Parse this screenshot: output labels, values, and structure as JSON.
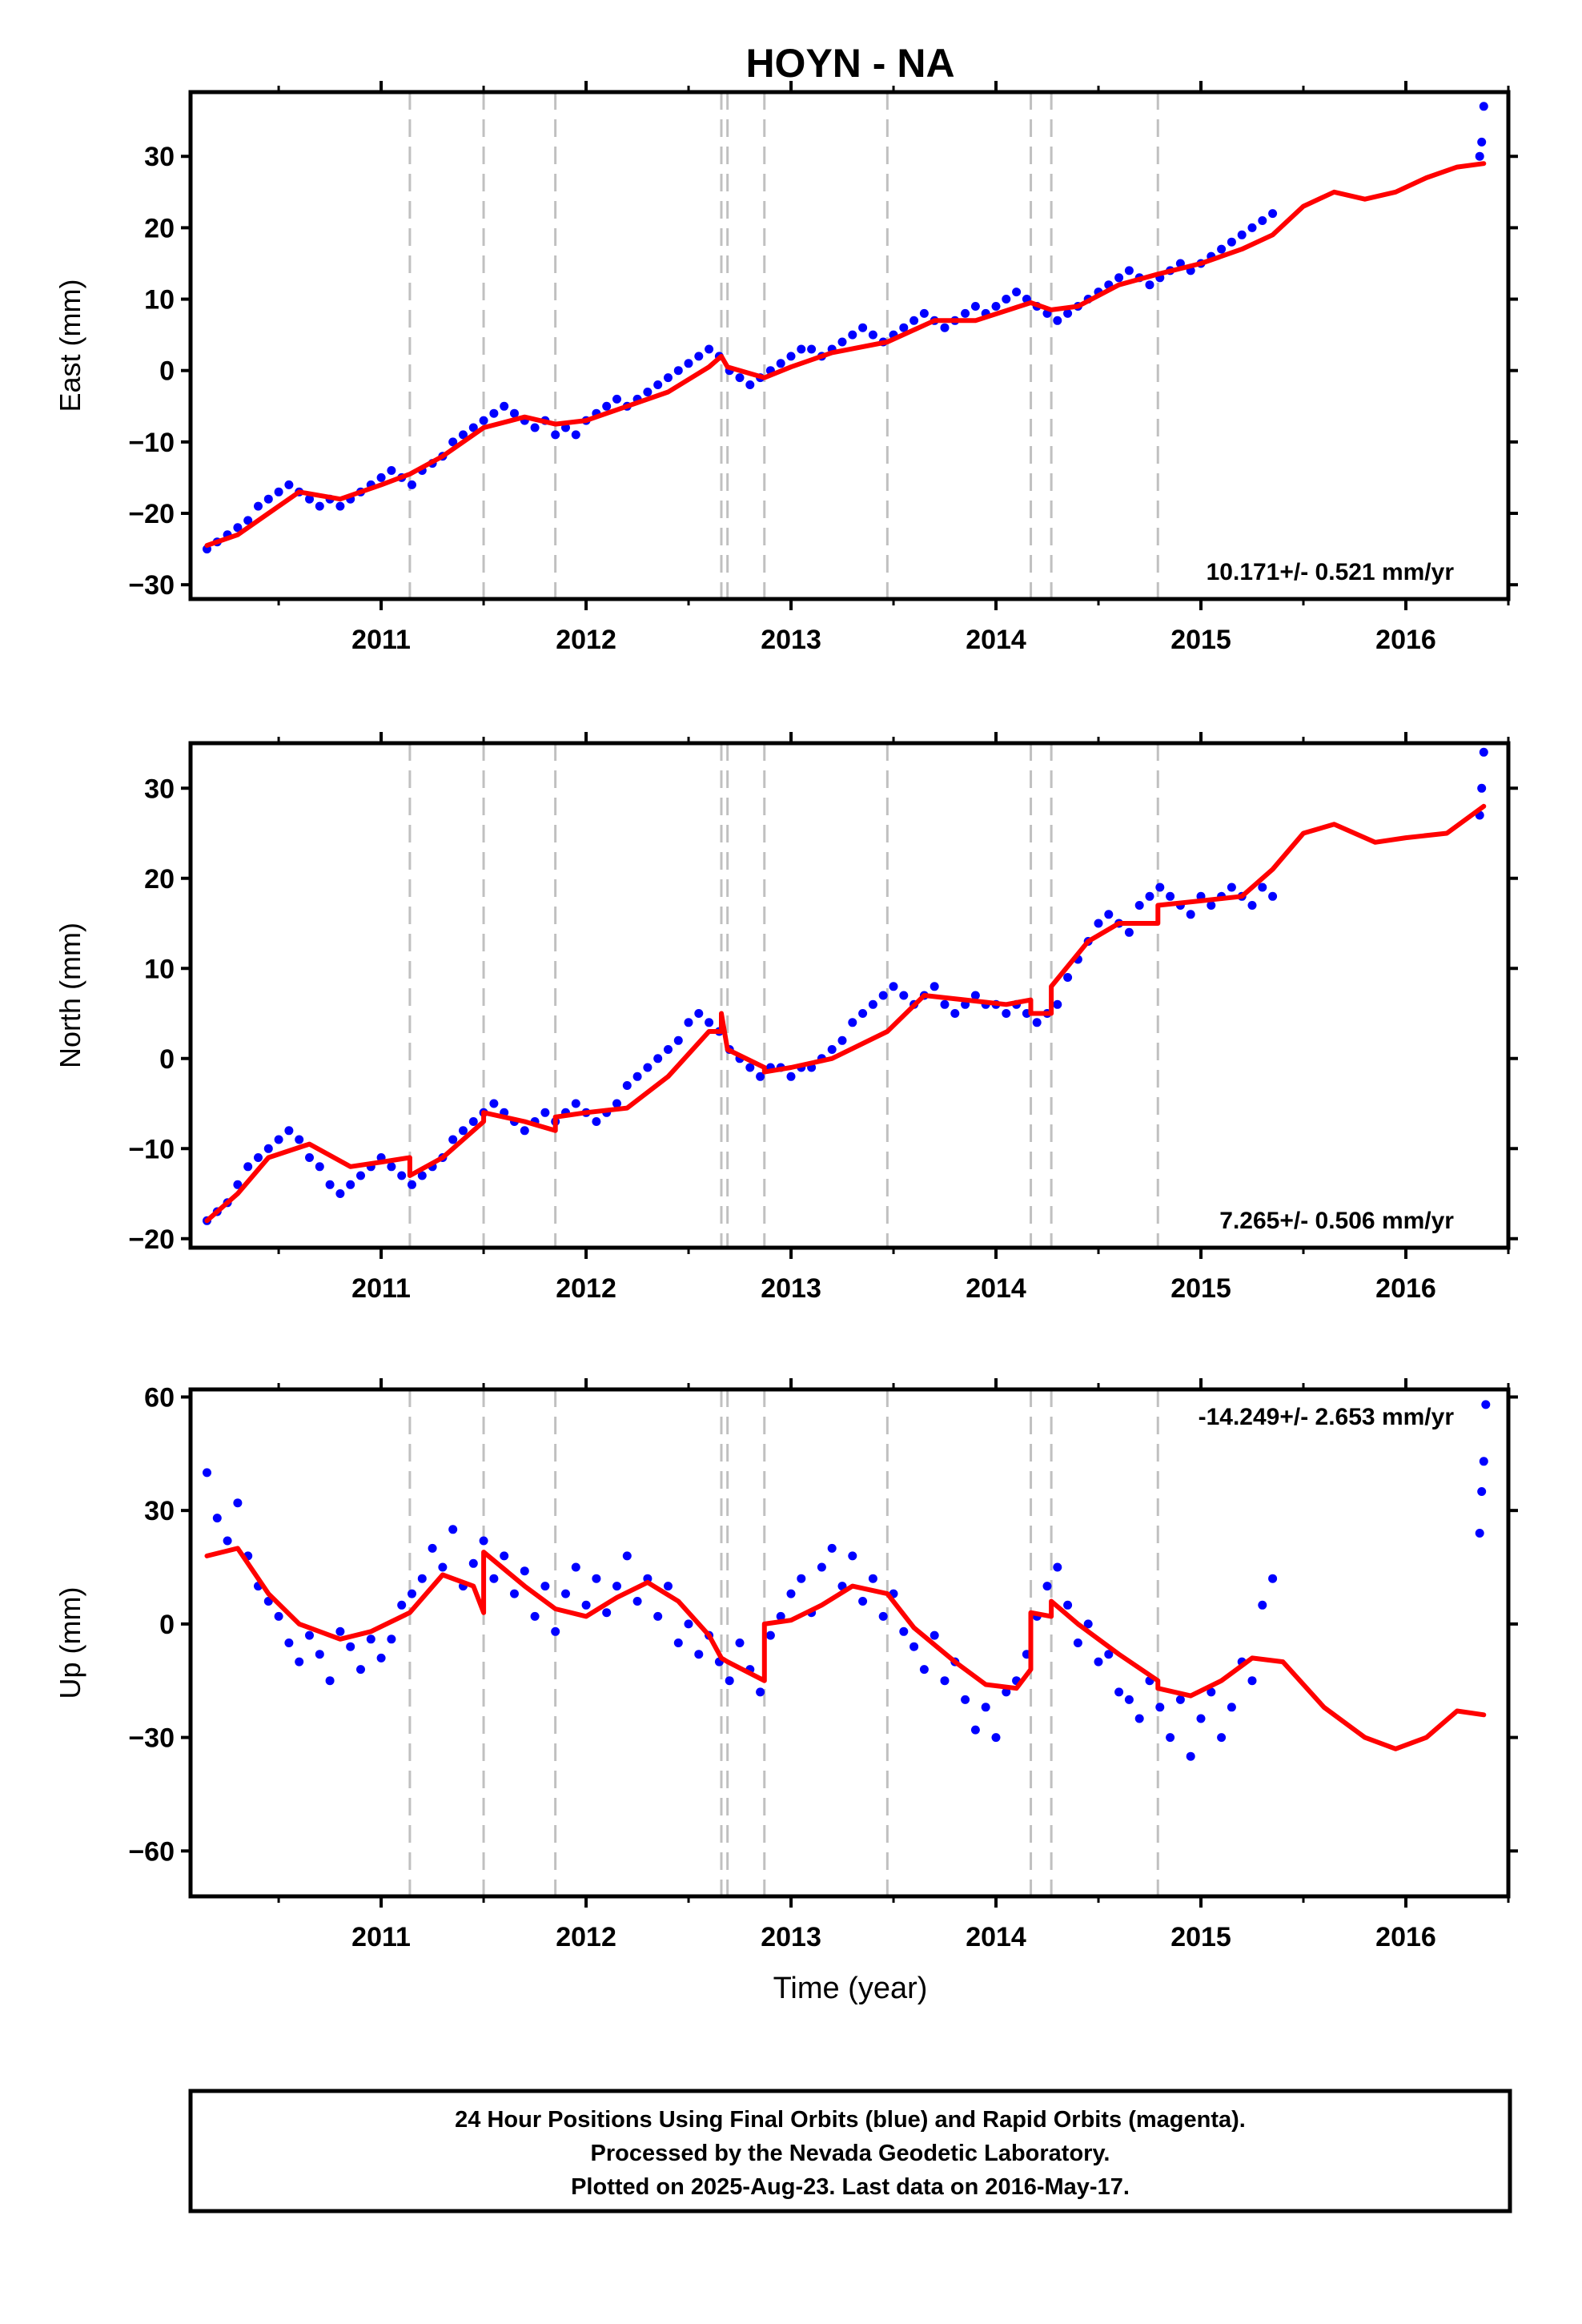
{
  "title": "HOYN - NA",
  "xlabel": "Time (year)",
  "footer": [
    "24 Hour Positions Using Final Orbits (blue) and Rapid Orbits (magenta).",
    "Processed by the Nevada Geodetic Laboratory.",
    "Plotted on 2025-Aug-23. Last data on 2016-May-17."
  ],
  "colors": {
    "points": "#0000ff",
    "model": "#ff0000",
    "steps": "#c0c0c0"
  },
  "chart_data": [
    {
      "type": "scatter",
      "component": "East",
      "ylabel": "East (mm)",
      "rate": "10.171+/- 0.521 mm/yr",
      "xlim": [
        2010.07,
        2016.5
      ],
      "ylim": [
        -32,
        39
      ],
      "yticks": [
        -30,
        -20,
        -10,
        0,
        10,
        20,
        30
      ],
      "xticks": [
        2011,
        2012,
        2013,
        2014,
        2015,
        2016
      ],
      "step_epochs": [
        2011.14,
        2011.5,
        2011.85,
        2012.66,
        2012.69,
        2012.87,
        2013.47,
        2014.17,
        2014.27,
        2014.79
      ],
      "series": [
        {
          "name": "24 Hour Positions (Final Orbits)",
          "x": [
            2010.15,
            2010.2,
            2010.25,
            2010.3,
            2010.35,
            2010.4,
            2010.45,
            2010.5,
            2010.55,
            2010.6,
            2010.65,
            2010.7,
            2010.75,
            2010.8,
            2010.85,
            2010.9,
            2010.95,
            2011.0,
            2011.05,
            2011.1,
            2011.15,
            2011.2,
            2011.25,
            2011.3,
            2011.35,
            2011.4,
            2011.45,
            2011.5,
            2011.55,
            2011.6,
            2011.65,
            2011.7,
            2011.75,
            2011.8,
            2011.85,
            2011.9,
            2011.95,
            2012.0,
            2012.05,
            2012.1,
            2012.15,
            2012.2,
            2012.25,
            2012.3,
            2012.35,
            2012.4,
            2012.45,
            2012.5,
            2012.55,
            2012.6,
            2012.65,
            2012.7,
            2012.75,
            2012.8,
            2012.85,
            2012.9,
            2012.95,
            2013.0,
            2013.05,
            2013.1,
            2013.15,
            2013.2,
            2013.25,
            2013.3,
            2013.35,
            2013.4,
            2013.45,
            2013.5,
            2013.55,
            2013.6,
            2013.65,
            2013.7,
            2013.75,
            2013.8,
            2013.85,
            2013.9,
            2013.95,
            2014.0,
            2014.05,
            2014.1,
            2014.15,
            2014.2,
            2014.25,
            2014.3,
            2014.35,
            2014.4,
            2014.45,
            2014.5,
            2014.55,
            2014.6,
            2014.65,
            2014.7,
            2014.75,
            2014.8,
            2014.85,
            2014.9,
            2014.95,
            2015.0,
            2015.05,
            2015.1,
            2015.15,
            2015.2,
            2015.25,
            2015.3,
            2015.35,
            2016.36,
            2016.37,
            2016.38
          ],
          "y": [
            -25,
            -24,
            -23,
            -22,
            -21,
            -19,
            -18,
            -17,
            -16,
            -17,
            -18,
            -19,
            -18,
            -19,
            -18,
            -17,
            -16,
            -15,
            -14,
            -15,
            -16,
            -14,
            -13,
            -12,
            -10,
            -9,
            -8,
            -7,
            -6,
            -5,
            -6,
            -7,
            -8,
            -7,
            -9,
            -8,
            -9,
            -7,
            -6,
            -5,
            -4,
            -5,
            -4,
            -3,
            -2,
            -1,
            0,
            1,
            2,
            3,
            2,
            0,
            -1,
            -2,
            -1,
            0,
            1,
            2,
            3,
            3,
            2,
            3,
            4,
            5,
            6,
            5,
            4,
            5,
            6,
            7,
            8,
            7,
            6,
            7,
            8,
            9,
            8,
            9,
            10,
            11,
            10,
            9,
            8,
            7,
            8,
            9,
            10,
            11,
            12,
            13,
            14,
            13,
            12,
            13,
            14,
            15,
            14,
            15,
            16,
            17,
            18,
            19,
            20,
            21,
            22,
            30,
            32,
            37
          ]
        },
        {
          "name": "Model",
          "x": [
            2010.15,
            2010.3,
            2010.45,
            2010.6,
            2010.8,
            2011.0,
            2011.14,
            2011.3,
            2011.5,
            2011.7,
            2011.85,
            2012.0,
            2012.2,
            2012.4,
            2012.6,
            2012.66,
            2012.69,
            2012.87,
            2013.0,
            2013.2,
            2013.47,
            2013.7,
            2013.9,
            2014.17,
            2014.27,
            2014.4,
            2014.6,
            2014.79,
            2015.0,
            2015.2,
            2015.35,
            2015.5,
            2015.65,
            2015.8,
            2015.95,
            2016.1,
            2016.25,
            2016.38
          ],
          "y": [
            -24.5,
            -23,
            -20,
            -17,
            -18,
            -16,
            -14.5,
            -12,
            -8,
            -6.5,
            -7.5,
            -7,
            -5,
            -3,
            0.5,
            2,
            0.5,
            -1,
            0.5,
            2.5,
            4,
            7,
            7,
            9.5,
            8.5,
            9,
            12,
            13.5,
            15,
            17,
            19,
            23,
            25,
            24,
            25,
            27,
            28.5,
            29
          ]
        }
      ]
    },
    {
      "type": "scatter",
      "component": "North",
      "ylabel": "North (mm)",
      "rate": "7.265+/- 0.506 mm/yr",
      "xlim": [
        2010.07,
        2016.5
      ],
      "ylim": [
        -21,
        35
      ],
      "yticks": [
        -20,
        -10,
        0,
        10,
        20,
        30
      ],
      "xticks": [
        2011,
        2012,
        2013,
        2014,
        2015,
        2016
      ],
      "step_epochs": [
        2011.14,
        2011.5,
        2011.85,
        2012.66,
        2012.69,
        2012.87,
        2013.47,
        2014.17,
        2014.27,
        2014.79
      ],
      "series": [
        {
          "name": "24 Hour Positions (Final Orbits)",
          "x": [
            2010.15,
            2010.2,
            2010.25,
            2010.3,
            2010.35,
            2010.4,
            2010.45,
            2010.5,
            2010.55,
            2010.6,
            2010.65,
            2010.7,
            2010.75,
            2010.8,
            2010.85,
            2010.9,
            2010.95,
            2011.0,
            2011.05,
            2011.1,
            2011.15,
            2011.2,
            2011.25,
            2011.3,
            2011.35,
            2011.4,
            2011.45,
            2011.5,
            2011.55,
            2011.6,
            2011.65,
            2011.7,
            2011.75,
            2011.8,
            2011.85,
            2011.9,
            2011.95,
            2012.0,
            2012.05,
            2012.1,
            2012.15,
            2012.2,
            2012.25,
            2012.3,
            2012.35,
            2012.4,
            2012.45,
            2012.5,
            2012.55,
            2012.6,
            2012.65,
            2012.7,
            2012.75,
            2012.8,
            2012.85,
            2012.9,
            2012.95,
            2013.0,
            2013.05,
            2013.1,
            2013.15,
            2013.2,
            2013.25,
            2013.3,
            2013.35,
            2013.4,
            2013.45,
            2013.5,
            2013.55,
            2013.6,
            2013.65,
            2013.7,
            2013.75,
            2013.8,
            2013.85,
            2013.9,
            2013.95,
            2014.0,
            2014.05,
            2014.1,
            2014.15,
            2014.2,
            2014.25,
            2014.3,
            2014.35,
            2014.4,
            2014.45,
            2014.5,
            2014.55,
            2014.6,
            2014.65,
            2014.7,
            2014.75,
            2014.8,
            2014.85,
            2014.9,
            2014.95,
            2015.0,
            2015.05,
            2015.1,
            2015.15,
            2015.2,
            2015.25,
            2015.3,
            2015.35,
            2016.36,
            2016.37,
            2016.38
          ],
          "y": [
            -18,
            -17,
            -16,
            -14,
            -12,
            -11,
            -10,
            -9,
            -8,
            -9,
            -11,
            -12,
            -14,
            -15,
            -14,
            -13,
            -12,
            -11,
            -12,
            -13,
            -14,
            -13,
            -12,
            -11,
            -9,
            -8,
            -7,
            -6,
            -5,
            -6,
            -7,
            -8,
            -7,
            -6,
            -7,
            -6,
            -5,
            -6,
            -7,
            -6,
            -5,
            -3,
            -2,
            -1,
            0,
            1,
            2,
            4,
            5,
            4,
            3,
            1,
            0,
            -1,
            -2,
            -1,
            -1,
            -2,
            -1,
            -1,
            0,
            1,
            2,
            4,
            5,
            6,
            7,
            8,
            7,
            6,
            7,
            8,
            6,
            5,
            6,
            7,
            6,
            6,
            5,
            6,
            5,
            4,
            5,
            6,
            9,
            11,
            13,
            15,
            16,
            15,
            14,
            17,
            18,
            19,
            18,
            17,
            16,
            18,
            17,
            18,
            19,
            18,
            17,
            19,
            18,
            27,
            30,
            34
          ]
        },
        {
          "name": "Model",
          "x": [
            2010.15,
            2010.3,
            2010.45,
            2010.65,
            2010.85,
            2011.0,
            2011.14,
            2011.14,
            2011.3,
            2011.5,
            2011.5,
            2011.7,
            2011.85,
            2011.85,
            2012.0,
            2012.2,
            2012.4,
            2012.6,
            2012.66,
            2012.66,
            2012.69,
            2012.87,
            2012.87,
            2013.0,
            2013.2,
            2013.47,
            2013.65,
            2013.85,
            2014.05,
            2014.17,
            2014.17,
            2014.27,
            2014.27,
            2014.45,
            2014.6,
            2014.79,
            2014.79,
            2015.0,
            2015.2,
            2015.35,
            2015.5,
            2015.65,
            2015.85,
            2016.0,
            2016.2,
            2016.38
          ],
          "y": [
            -18,
            -15,
            -11,
            -9.5,
            -12,
            -11.5,
            -11,
            -13,
            -11,
            -7,
            -6,
            -7,
            -8,
            -6.5,
            -6,
            -5.5,
            -2,
            3,
            3,
            5,
            1,
            -1,
            -1.5,
            -1,
            0,
            3,
            7,
            6.5,
            6,
            6.5,
            5,
            5,
            8,
            13,
            15,
            15,
            17,
            17.5,
            18,
            21,
            25,
            26,
            24,
            24.5,
            25,
            28
          ]
        }
      ]
    },
    {
      "type": "scatter",
      "component": "Up",
      "ylabel": "Up (mm)",
      "rate": "-14.249+/- 2.653 mm/yr",
      "xlim": [
        2010.07,
        2016.5
      ],
      "ylim": [
        -72,
        62
      ],
      "yticks": [
        -60,
        -30,
        0,
        30,
        60
      ],
      "xticks": [
        2011,
        2012,
        2013,
        2014,
        2015,
        2016
      ],
      "step_epochs": [
        2011.14,
        2011.5,
        2011.85,
        2012.66,
        2012.69,
        2012.87,
        2013.47,
        2014.17,
        2014.27,
        2014.79
      ],
      "series": [
        {
          "name": "24 Hour Positions (Final Orbits)",
          "x": [
            2010.15,
            2010.2,
            2010.25,
            2010.3,
            2010.35,
            2010.4,
            2010.45,
            2010.5,
            2010.55,
            2010.6,
            2010.65,
            2010.7,
            2010.75,
            2010.8,
            2010.85,
            2010.9,
            2010.95,
            2011.0,
            2011.05,
            2011.1,
            2011.15,
            2011.2,
            2011.25,
            2011.3,
            2011.35,
            2011.4,
            2011.45,
            2011.5,
            2011.55,
            2011.6,
            2011.65,
            2011.7,
            2011.75,
            2011.8,
            2011.85,
            2011.9,
            2011.95,
            2012.0,
            2012.05,
            2012.1,
            2012.15,
            2012.2,
            2012.25,
            2012.3,
            2012.35,
            2012.4,
            2012.45,
            2012.5,
            2012.55,
            2012.6,
            2012.65,
            2012.7,
            2012.75,
            2012.8,
            2012.85,
            2012.9,
            2012.95,
            2013.0,
            2013.05,
            2013.1,
            2013.15,
            2013.2,
            2013.25,
            2013.3,
            2013.35,
            2013.4,
            2013.45,
            2013.5,
            2013.55,
            2013.6,
            2013.65,
            2013.7,
            2013.75,
            2013.8,
            2013.85,
            2013.9,
            2013.95,
            2014.0,
            2014.05,
            2014.1,
            2014.15,
            2014.2,
            2014.25,
            2014.3,
            2014.35,
            2014.4,
            2014.45,
            2014.5,
            2014.55,
            2014.6,
            2014.65,
            2014.7,
            2014.75,
            2014.8,
            2014.85,
            2014.9,
            2014.95,
            2015.0,
            2015.05,
            2015.1,
            2015.15,
            2015.2,
            2015.25,
            2015.3,
            2015.35,
            2016.36,
            2016.37,
            2016.38,
            2016.39
          ],
          "y": [
            40,
            28,
            22,
            32,
            18,
            10,
            6,
            2,
            -5,
            -10,
            -3,
            -8,
            -15,
            -2,
            -6,
            -12,
            -4,
            -9,
            -4,
            5,
            8,
            12,
            20,
            15,
            25,
            10,
            16,
            22,
            12,
            18,
            8,
            14,
            2,
            10,
            -2,
            8,
            15,
            5,
            12,
            3,
            10,
            18,
            6,
            12,
            2,
            10,
            -5,
            0,
            -8,
            -3,
            -10,
            -15,
            -5,
            -12,
            -18,
            -3,
            2,
            8,
            12,
            3,
            15,
            20,
            10,
            18,
            6,
            12,
            2,
            8,
            -2,
            -6,
            -12,
            -3,
            -15,
            -10,
            -20,
            -28,
            -22,
            -30,
            -18,
            -15,
            -8,
            2,
            10,
            15,
            5,
            -5,
            0,
            -10,
            -8,
            -18,
            -20,
            -25,
            -15,
            -22,
            -30,
            -20,
            -35,
            -25,
            -18,
            -30,
            -22,
            -10,
            -15,
            5,
            12,
            24,
            35,
            43,
            58
          ]
        },
        {
          "name": "Model",
          "x": [
            2010.15,
            2010.3,
            2010.45,
            2010.6,
            2010.8,
            2010.95,
            2011.14,
            2011.3,
            2011.45,
            2011.5,
            2011.5,
            2011.7,
            2011.85,
            2012.0,
            2012.15,
            2012.3,
            2012.45,
            2012.6,
            2012.66,
            2012.69,
            2012.87,
            2012.87,
            2013.0,
            2013.15,
            2013.3,
            2013.47,
            2013.6,
            2013.8,
            2013.95,
            2014.1,
            2014.17,
            2014.17,
            2014.27,
            2014.27,
            2014.4,
            2014.6,
            2014.79,
            2014.79,
            2014.95,
            2015.1,
            2015.25,
            2015.4,
            2015.6,
            2015.8,
            2015.95,
            2016.1,
            2016.25,
            2016.38
          ],
          "y": [
            18,
            20,
            8,
            0,
            -4,
            -2,
            3,
            13,
            10,
            3,
            19,
            10,
            4,
            2,
            7,
            11,
            6,
            -3,
            -9,
            -10,
            -15,
            0,
            1,
            5,
            10,
            8,
            -1,
            -10,
            -16,
            -17,
            -12,
            3,
            2,
            6,
            0,
            -8,
            -15,
            -17,
            -19,
            -15,
            -9,
            -10,
            -22,
            -30,
            -33,
            -30,
            -23,
            -24
          ]
        }
      ]
    }
  ]
}
